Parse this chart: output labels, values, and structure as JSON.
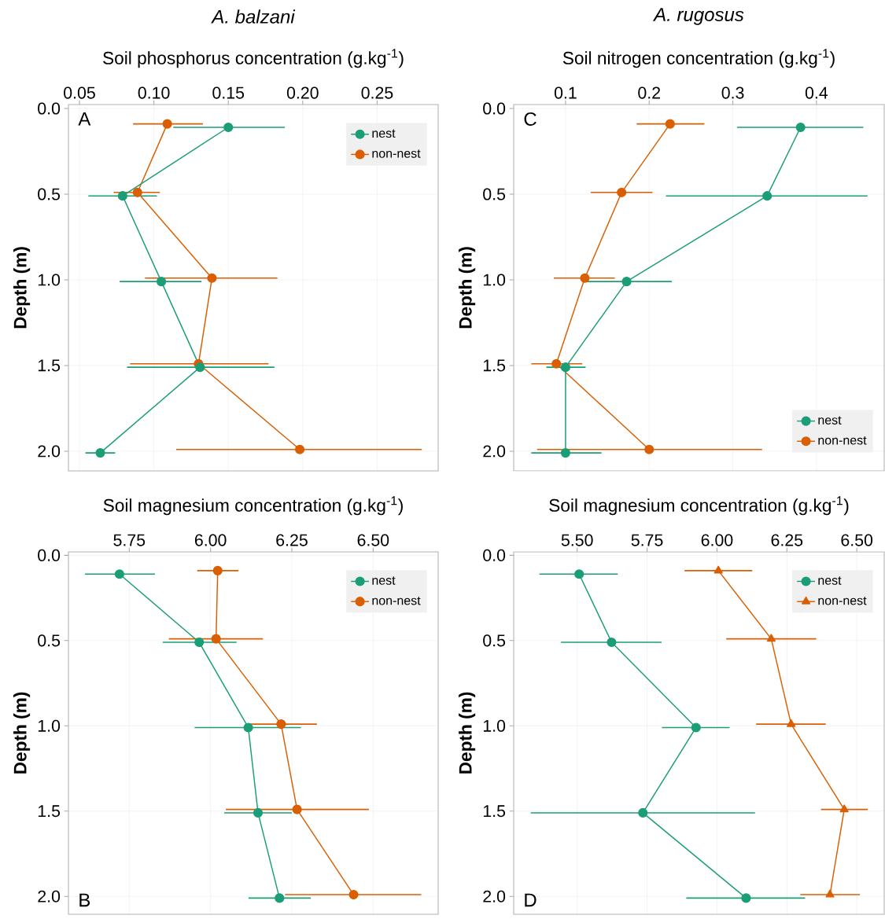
{
  "chart_data": [
    {
      "type": "line",
      "title": "A. balzani",
      "xlabel": "Soil phosphorus concentration (g.kg$^{-1}$)",
      "ylabel": "Depth (m)",
      "xlim": [
        0.0426,
        0.291
      ],
      "xticks": [
        {
          "value": 0.05,
          "label": "0.05"
        },
        {
          "value": 0.1,
          "label": "0.10"
        },
        {
          "value": 0.15,
          "label": "0.15"
        },
        {
          "value": 0.2,
          "label": "0.20"
        },
        {
          "value": 0.25,
          "label": "0.25"
        }
      ],
      "ylim": [
        2.115,
        -0.023
      ],
      "yticks": [
        {
          "value": 0,
          "label": "0.0"
        },
        {
          "value": 0.5,
          "label": "0.5"
        },
        {
          "value": 1,
          "label": "1.0"
        },
        {
          "value": 1.5,
          "label": "1.5"
        },
        {
          "value": 2,
          "label": "2.0"
        }
      ],
      "grid": true,
      "legend": "top right",
      "marker": "circle",
      "annotations": [
        "A"
      ],
      "series": [
        {
          "name": "nest",
          "color": "#1b9e77",
          "x": [
            0.15,
            0.079,
            0.105,
            0.131,
            0.064
          ],
          "values": [
            0.11,
            0.51,
            1.01,
            1.51,
            2.01
          ],
          "xerrors": [
            [
              0.113,
              0.188
            ],
            [
              0.056,
              0.102
            ],
            [
              0.077,
              0.132
            ],
            [
              0.082,
              0.181
            ],
            [
              0.054,
              0.074
            ]
          ]
        },
        {
          "name": "non-nest",
          "color": "#d95f02",
          "x": [
            0.109,
            0.089,
            0.139,
            0.13,
            0.198
          ],
          "values": [
            0.09,
            0.49,
            0.99,
            1.49,
            1.99
          ],
          "xerrors": [
            [
              0.086,
              0.133
            ],
            [
              0.073,
              0.104
            ],
            [
              0.094,
              0.183
            ],
            [
              0.084,
              0.177
            ],
            [
              0.115,
              0.28
            ]
          ]
        }
      ]
    },
    {
      "type": "line",
      "title": "A. rugosus",
      "xlabel": "Soil nitrogen concentration (g.kg$^{-1}$)",
      "ylabel": "Depth (m)",
      "xlim": [
        0.038,
        0.481
      ],
      "xticks": [
        0.1,
        0.2,
        0.3,
        0.4
      ],
      "ylim": [
        2.115,
        -0.023
      ],
      "yticks": [
        {
          "value": 0,
          "label": "0.0"
        },
        {
          "value": 0.5,
          "label": "0.5"
        },
        {
          "value": 1,
          "label": "1.0"
        },
        {
          "value": 1.5,
          "label": "1.5"
        },
        {
          "value": 2,
          "label": "2.0"
        }
      ],
      "grid": true,
      "legend": "bottom right",
      "marker": "circle",
      "annotations": [
        "C"
      ],
      "series": [
        {
          "name": "nest",
          "color": "#1b9e77",
          "x": [
            0.381,
            0.341,
            0.173,
            0.1,
            0.1
          ],
          "values": [
            0.11,
            0.51,
            1.01,
            1.51,
            2.01
          ],
          "xerrors": [
            [
              0.305,
              0.456
            ],
            [
              0.22,
              0.461
            ],
            [
              0.124,
              0.227
            ],
            [
              0.077,
              0.124
            ],
            [
              0.059,
              0.143
            ]
          ]
        },
        {
          "name": "non-nest",
          "color": "#d95f02",
          "x": [
            0.225,
            0.167,
            0.123,
            0.089,
            0.2
          ],
          "values": [
            0.09,
            0.49,
            0.99,
            1.49,
            1.99
          ],
          "xerrors": [
            [
              0.185,
              0.266
            ],
            [
              0.13,
              0.204
            ],
            [
              0.086,
              0.159
            ],
            [
              0.059,
              0.12
            ],
            [
              0.066,
              0.335
            ]
          ]
        }
      ]
    },
    {
      "type": "line",
      "xlabel": "Soil magnesium concentration (g.kg$^{-1}$)",
      "ylabel": "Depth (m)",
      "xlim": [
        5.563,
        6.7
      ],
      "xticks": [
        5.75,
        {
          "value": 6,
          "label": "6.00"
        },
        6.25,
        {
          "value": 6.5,
          "label": "6.50"
        }
      ],
      "ylim": [
        2.105,
        -0.02
      ],
      "yticks": [
        {
          "value": 0,
          "label": "0.0"
        },
        {
          "value": 0.5,
          "label": "0.5"
        },
        {
          "value": 1,
          "label": "1.0"
        },
        {
          "value": 1.5,
          "label": "1.5"
        },
        {
          "value": 2,
          "label": "2.0"
        }
      ],
      "grid": true,
      "legend": "top right",
      "marker": "circle",
      "annotations": [
        "B"
      ],
      "series": [
        {
          "name": "nest",
          "color": "#1b9e77",
          "x": [
            5.72,
            5.965,
            6.116,
            6.146,
            6.212
          ],
          "values": [
            0.11,
            0.51,
            1.01,
            1.51,
            2.01
          ],
          "xerrors": [
            [
              5.614,
              5.829
            ],
            [
              5.853,
              6.08
            ],
            [
              5.951,
              6.278
            ],
            [
              6.042,
              6.25
            ],
            [
              6.117,
              6.308
            ]
          ]
        },
        {
          "name": "non-nest",
          "color": "#d95f02",
          "x": [
            6.022,
            6.017,
            6.217,
            6.266,
            6.44
          ],
          "values": [
            0.09,
            0.49,
            0.99,
            1.49,
            1.99
          ],
          "xerrors": [
            [
              5.959,
              6.086
            ],
            [
              5.872,
              6.161
            ],
            [
              6.111,
              6.327
            ],
            [
              6.047,
              6.487
            ],
            [
              6.229,
              6.648
            ]
          ]
        }
      ]
    },
    {
      "type": "line",
      "xlabel": "Soil magnesium concentration (g.kg$^{-1}$)",
      "ylabel": "Depth (m)",
      "xlim": [
        5.273,
        6.598
      ],
      "xticks": [
        {
          "value": 5.5,
          "label": "5.50"
        },
        5.75,
        {
          "value": 6,
          "label": "6.00"
        },
        6.25,
        {
          "value": 6.5,
          "label": "6.50"
        }
      ],
      "ylim": [
        2.105,
        -0.02
      ],
      "yticks": [
        {
          "value": 0,
          "label": "0.0"
        },
        {
          "value": 0.5,
          "label": "0.5"
        },
        {
          "value": 1,
          "label": "1.0"
        },
        {
          "value": 1.5,
          "label": "1.5"
        },
        {
          "value": 2,
          "label": "2.0"
        }
      ],
      "grid": true,
      "legend": "top right",
      "marker": "circle",
      "annotations": [
        "D"
      ],
      "series": [
        {
          "name": "nest",
          "color": "#1b9e77",
          "x": [
            5.507,
            5.623,
            5.925,
            5.735,
            6.104
          ],
          "values": [
            0.11,
            0.51,
            1.01,
            1.51,
            2.01
          ],
          "xerrors": [
            [
              5.365,
              5.645
            ],
            [
              5.442,
              5.802
            ],
            [
              5.803,
              6.045
            ],
            [
              5.334,
              6.136
            ],
            [
              5.89,
              6.315
            ]
          ]
        },
        {
          "name": "non-nest",
          "color": "#d95f02",
          "marker": "triangle",
          "x": [
            6.005,
            6.194,
            6.265,
            6.455,
            6.404
          ],
          "values": [
            0.09,
            0.49,
            0.99,
            1.49,
            1.99
          ],
          "xerrors": [
            [
              5.884,
              6.126
            ],
            [
              6.033,
              6.355
            ],
            [
              6.14,
              6.389
            ],
            [
              6.372,
              6.539
            ],
            [
              6.298,
              6.511
            ]
          ]
        }
      ]
    }
  ]
}
